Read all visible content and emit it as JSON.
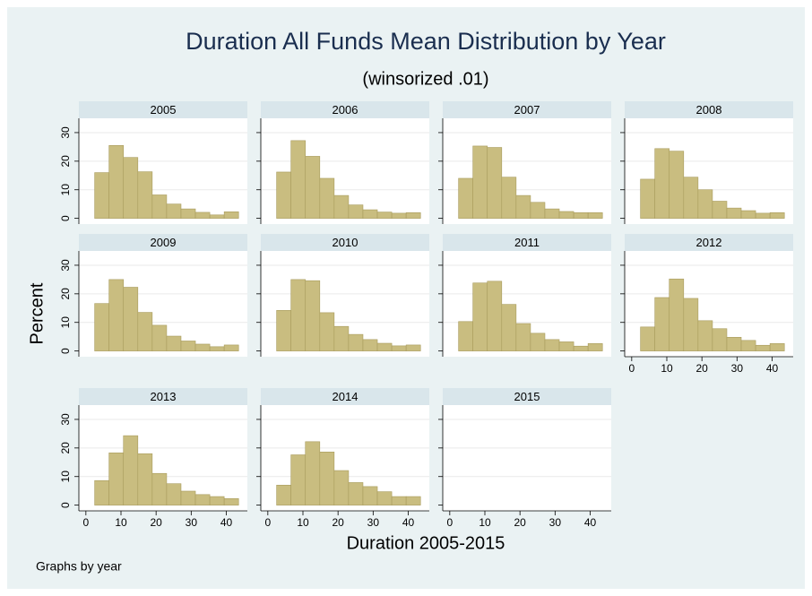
{
  "title": "Duration All Funds Mean Distribution by Year",
  "subtitle": "(winsorized .01)",
  "y_label": "Percent",
  "x_label": "Duration 2005-2015",
  "note": "Graphs by year",
  "axes": {
    "xlim": [
      -2,
      46
    ],
    "xticks": [
      0,
      10,
      20,
      30,
      40
    ],
    "ylim": [
      -2,
      35
    ],
    "yticks": [
      0,
      10,
      20,
      30
    ],
    "grid": true
  },
  "chart_data": [
    {
      "type": "histogram",
      "title": "2005",
      "color": "#c9bd80",
      "bins": [
        2.5,
        6.6,
        10.7,
        14.8,
        18.9,
        23,
        27.1,
        31.2,
        35.3,
        39.4,
        43.5
      ],
      "values": [
        16,
        25.5,
        21.3,
        16.3,
        8.2,
        5,
        3.3,
        2.1,
        1.2,
        2.3
      ]
    },
    {
      "type": "histogram",
      "title": "2006",
      "color": "#c9bd80",
      "bins": [
        2.5,
        6.6,
        10.7,
        14.8,
        18.9,
        23,
        27.1,
        31.2,
        35.3,
        39.4,
        43.5
      ],
      "values": [
        16.2,
        27.2,
        21.7,
        14,
        8,
        4.7,
        3,
        2.2,
        1.8,
        2
      ]
    },
    {
      "type": "histogram",
      "title": "2007",
      "color": "#c9bd80",
      "bins": [
        2.5,
        6.6,
        10.7,
        14.8,
        18.9,
        23,
        27.1,
        31.2,
        35.3,
        39.4,
        43.5
      ],
      "values": [
        14,
        25.3,
        24.8,
        14.4,
        8,
        5.6,
        3.3,
        2.4,
        2,
        2
      ]
    },
    {
      "type": "histogram",
      "title": "2008",
      "color": "#c9bd80",
      "bins": [
        2.5,
        6.6,
        10.7,
        14.8,
        18.9,
        23,
        27.1,
        31.2,
        35.3,
        39.4,
        43.5
      ],
      "values": [
        13.7,
        24.4,
        23.5,
        14.4,
        10,
        6,
        3.6,
        2.7,
        1.8,
        2
      ]
    },
    {
      "type": "histogram",
      "title": "2009",
      "color": "#c9bd80",
      "bins": [
        2.5,
        6.6,
        10.7,
        14.8,
        18.9,
        23,
        27.1,
        31.2,
        35.3,
        39.4,
        43.5
      ],
      "values": [
        16.6,
        25,
        22.3,
        13.5,
        9,
        5.2,
        3.5,
        2.4,
        1.5,
        2.1
      ]
    },
    {
      "type": "histogram",
      "title": "2010",
      "color": "#c9bd80",
      "bins": [
        2.5,
        6.6,
        10.7,
        14.8,
        18.9,
        23,
        27.1,
        31.2,
        35.3,
        39.4,
        43.5
      ],
      "values": [
        14.2,
        25,
        24.6,
        13.4,
        8.6,
        5.8,
        4,
        2.7,
        1.8,
        2.1
      ]
    },
    {
      "type": "histogram",
      "title": "2011",
      "color": "#c9bd80",
      "bins": [
        2.5,
        6.6,
        10.7,
        14.8,
        18.9,
        23,
        27.1,
        31.2,
        35.3,
        39.4,
        43.5
      ],
      "values": [
        10.3,
        23.8,
        24.4,
        16.3,
        9.6,
        6.2,
        4,
        3.2,
        1.7,
        2.6
      ]
    },
    {
      "type": "histogram",
      "title": "2012",
      "color": "#c9bd80",
      "bins": [
        2.5,
        6.6,
        10.7,
        14.8,
        18.9,
        23,
        27.1,
        31.2,
        35.3,
        39.4,
        43.5
      ],
      "values": [
        8.4,
        18.7,
        25.2,
        18.4,
        10.6,
        7.8,
        4.8,
        3.7,
        2,
        2.6
      ]
    },
    {
      "type": "histogram",
      "title": "2013",
      "color": "#c9bd80",
      "bins": [
        2.5,
        6.6,
        10.7,
        14.8,
        18.9,
        23,
        27.1,
        31.2,
        35.3,
        39.4,
        43.5
      ],
      "values": [
        8.6,
        18.3,
        24.3,
        18,
        11.1,
        7.5,
        4.9,
        3.7,
        3,
        2.3
      ]
    },
    {
      "type": "histogram",
      "title": "2014",
      "color": "#c9bd80",
      "bins": [
        2.5,
        6.6,
        10.7,
        14.8,
        18.9,
        23,
        27.1,
        31.2,
        35.3,
        39.4,
        43.5
      ],
      "values": [
        7,
        17.6,
        22.2,
        18.6,
        12.1,
        7.9,
        6.5,
        4.7,
        3,
        3
      ]
    },
    {
      "type": "histogram",
      "title": "2015"
    }
  ]
}
